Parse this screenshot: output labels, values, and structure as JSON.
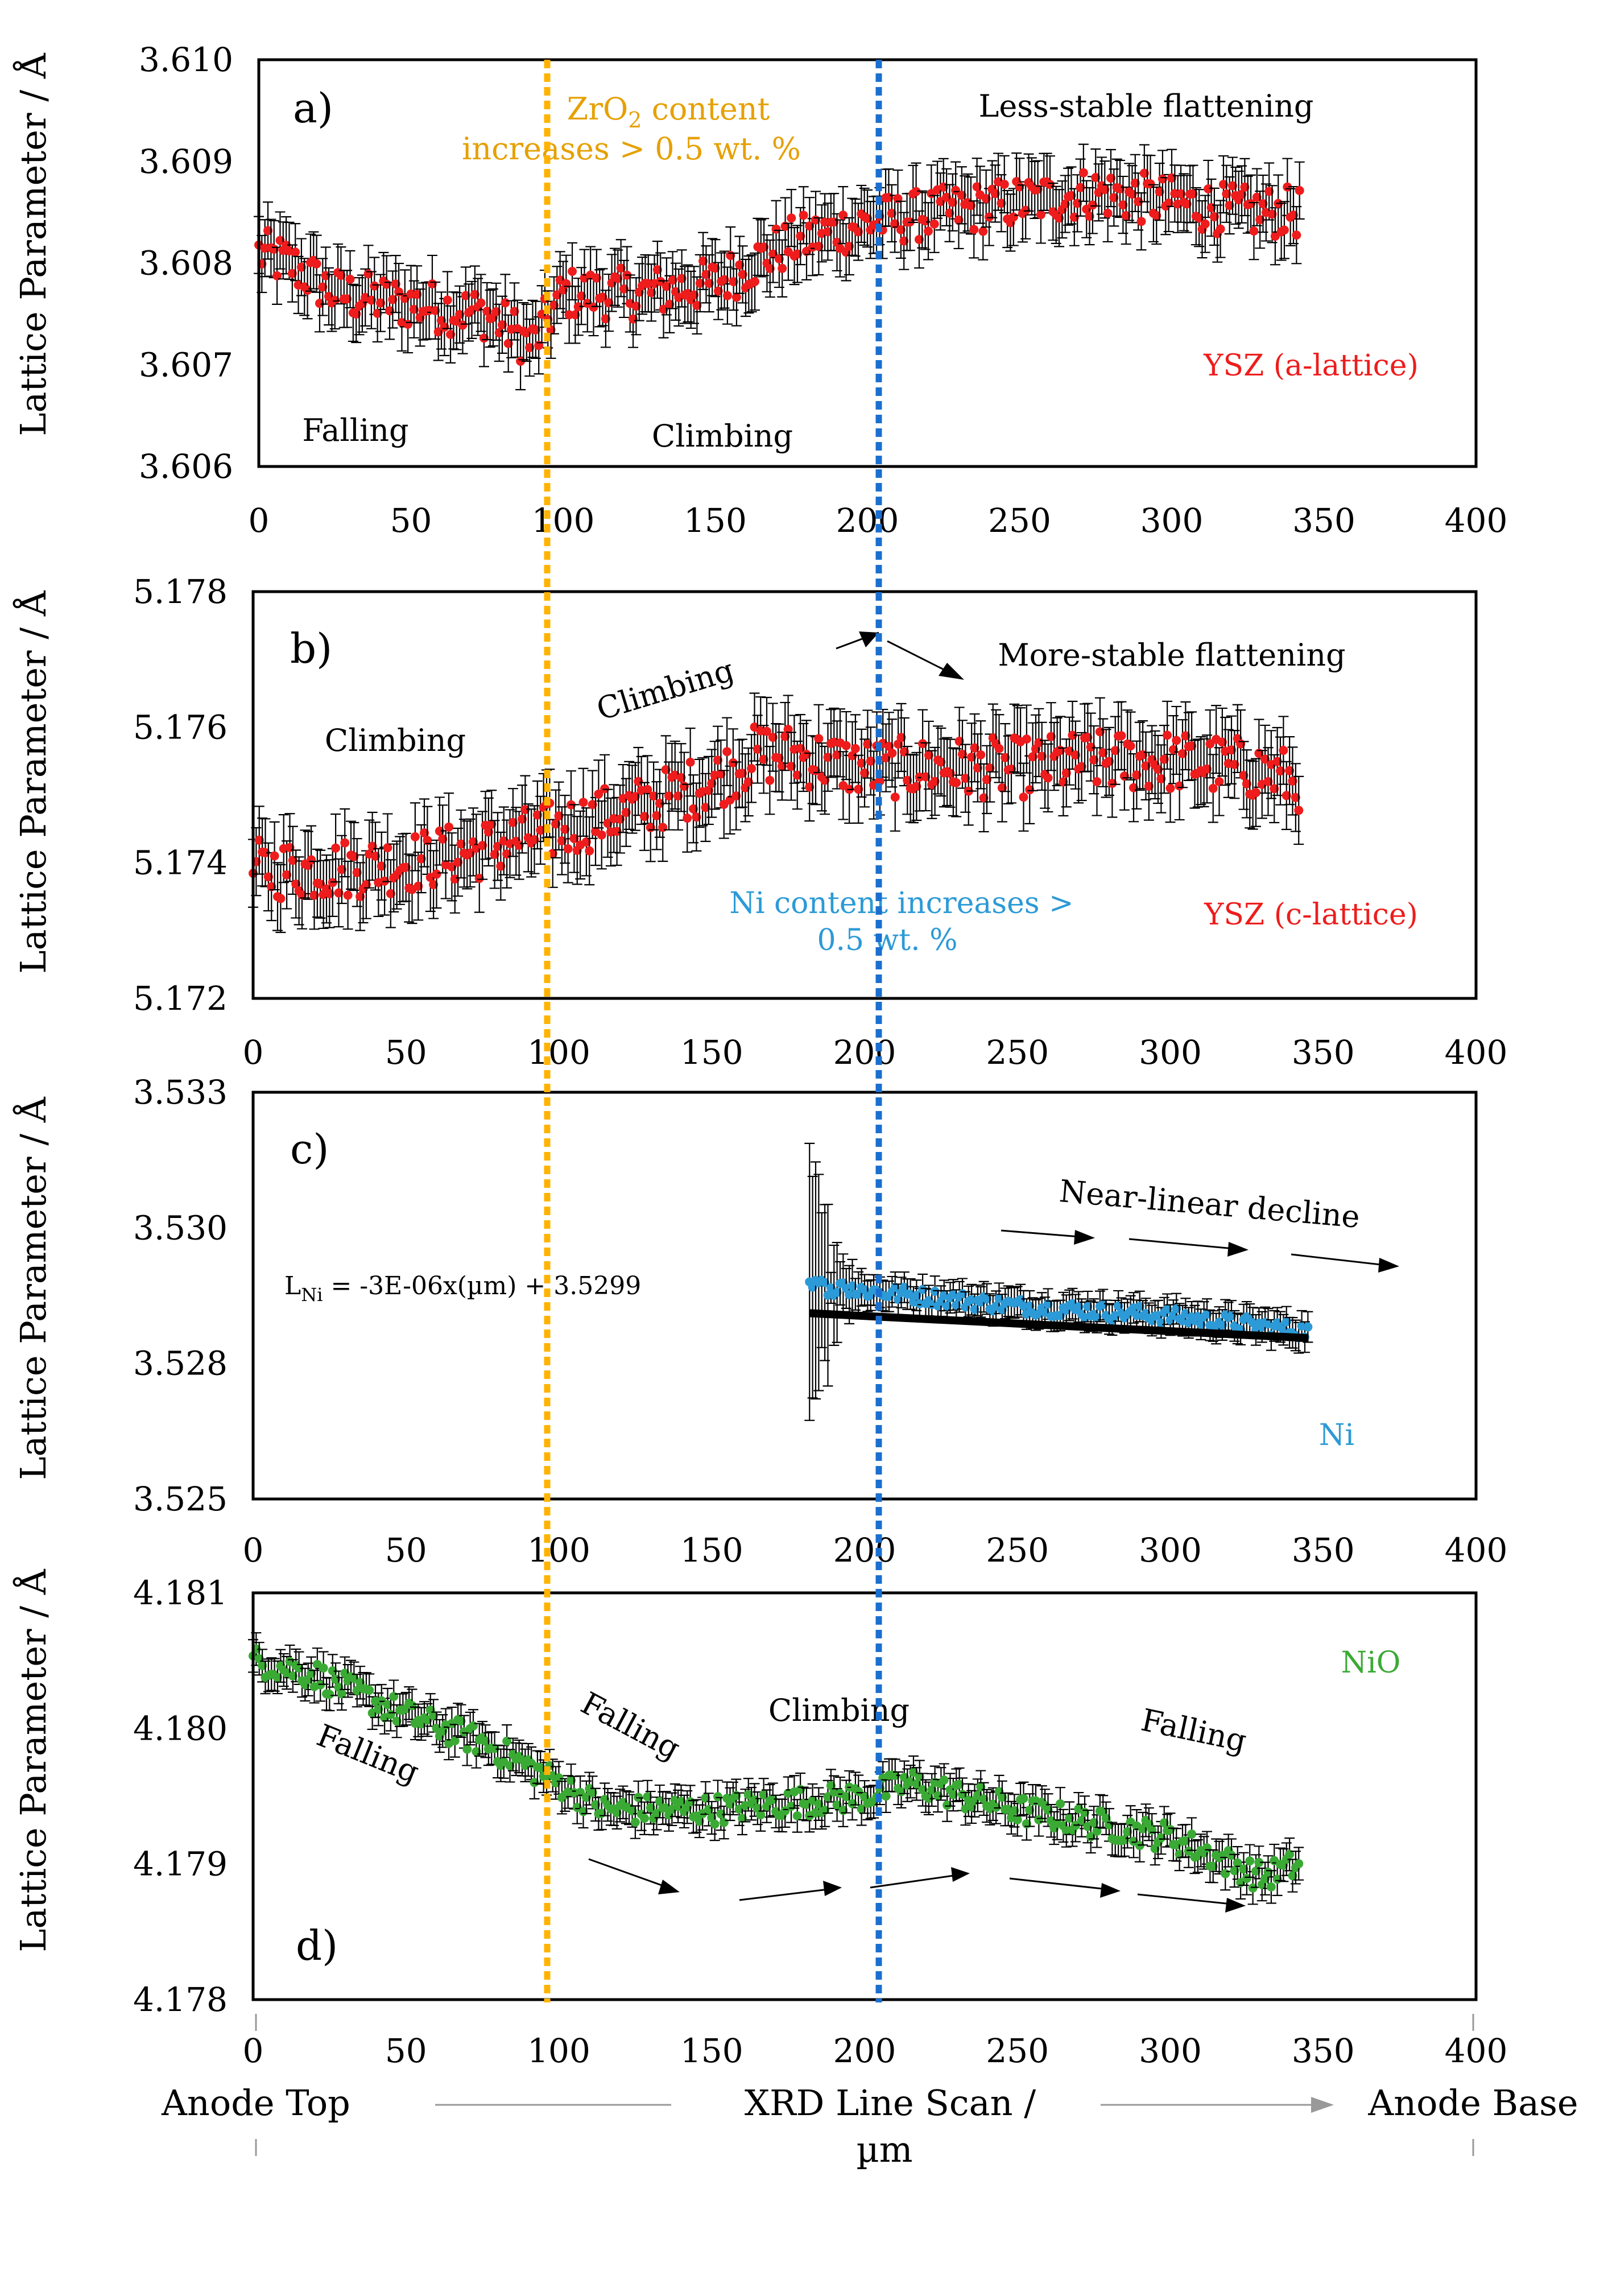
{
  "chart_data": [
    {
      "panel": "a)",
      "type": "scatter",
      "ylabel": "Lattice Parameter / Å",
      "series_label": "YSZ (a-lattice)",
      "color": "#ee1c1c",
      "ylim": [
        3.606,
        3.61
      ],
      "ytick_labels": [
        "3.606",
        "3.607",
        "3.608",
        "3.609",
        "3.610"
      ],
      "xlim": [
        0,
        400
      ],
      "xtick_labels": [
        "0",
        "50",
        "100",
        "150",
        "200",
        "250",
        "300",
        "350",
        "400"
      ],
      "x_range": [
        0,
        342
      ],
      "error": 0.00028,
      "trend_points": [
        [
          0,
          3.6081
        ],
        [
          10,
          3.608
        ],
        [
          25,
          3.6077
        ],
        [
          50,
          3.6076
        ],
        [
          75,
          3.6075
        ],
        [
          90,
          3.6072
        ],
        [
          100,
          3.6077
        ],
        [
          125,
          3.6077
        ],
        [
          150,
          3.6078
        ],
        [
          175,
          3.6082
        ],
        [
          200,
          3.6084
        ],
        [
          225,
          3.6085
        ],
        [
          250,
          3.6086
        ],
        [
          275,
          3.6087
        ],
        [
          300,
          3.6086
        ],
        [
          325,
          3.6085
        ],
        [
          342,
          3.6085
        ]
      ],
      "annotations": {
        "falling": "Falling",
        "climbing": "Climbing",
        "less_stable": "Less-stable flattening",
        "zro2_line1": "ZrO",
        "zro2_sub": "2",
        "zro2_line1_rest": " content",
        "zro2_line2": "increases > 0.5 wt. %"
      }
    },
    {
      "panel": "b)",
      "type": "scatter",
      "ylabel": "Lattice Parameter / Å",
      "series_label": "YSZ (c-lattice)",
      "color": "#ee1c1c",
      "ylim": [
        5.172,
        5.178
      ],
      "ytick_labels": [
        "5.172",
        "5.174",
        "5.176",
        "5.178"
      ],
      "xlim": [
        0,
        400
      ],
      "xtick_labels": [
        "0",
        "50",
        "100",
        "150",
        "200",
        "250",
        "300",
        "350",
        "400"
      ],
      "x_range": [
        0,
        342
      ],
      "error": 0.0005,
      "trend_points": [
        [
          0,
          5.1739
        ],
        [
          25,
          5.1739
        ],
        [
          50,
          5.174
        ],
        [
          75,
          5.1742
        ],
        [
          100,
          5.1745
        ],
        [
          125,
          5.1748
        ],
        [
          150,
          5.1752
        ],
        [
          165,
          5.1756
        ],
        [
          175,
          5.1756
        ],
        [
          200,
          5.1754
        ],
        [
          225,
          5.1754
        ],
        [
          250,
          5.1754
        ],
        [
          275,
          5.1755
        ],
        [
          300,
          5.1755
        ],
        [
          325,
          5.1754
        ],
        [
          342,
          5.1752
        ]
      ],
      "annotations": {
        "climbing1": "Climbing",
        "climbing2": "Climbing",
        "more_stable": "More-stable flattening",
        "ni_line1": "Ni content increases >",
        "ni_line2": "0.5 wt. %"
      }
    },
    {
      "panel": "c)",
      "type": "scatter",
      "ylabel": "Lattice Parameter / Å",
      "series_label": "Ni",
      "color": "#2c9ad6",
      "ylim": [
        3.525,
        3.533
      ],
      "ytick_labels": [
        "3.525",
        "3.528",
        "3.530",
        "3.533"
      ],
      "xlim": [
        0,
        400
      ],
      "xtick_labels": [
        "0",
        "50",
        "100",
        "150",
        "200",
        "250",
        "300",
        "350",
        "400"
      ],
      "x_range": [
        182,
        345
      ],
      "error": 0.0003,
      "trend_points": [
        [
          182,
          3.5292
        ],
        [
          200,
          3.5291
        ],
        [
          250,
          3.5288
        ],
        [
          300,
          3.5286
        ],
        [
          345,
          3.5283
        ]
      ],
      "fit": {
        "slope": -3e-06,
        "intercept": 3.5299
      },
      "equation_prefix": "L",
      "equation_sub": "Ni",
      "equation_rest": " = -3E-06x(µm) + 3.5299",
      "annotations": {
        "decline": "Near-linear decline"
      }
    },
    {
      "panel": "d)",
      "type": "scatter",
      "ylabel": "Lattice Parameter / Å",
      "series_label": "NiO",
      "color": "#3aaa35",
      "ylim": [
        4.178,
        4.181
      ],
      "ytick_labels": [
        "4.178",
        "4.179",
        "4.180",
        "4.181"
      ],
      "xlim": [
        0,
        400
      ],
      "xtick_labels": [
        "0",
        "50",
        "100",
        "150",
        "200",
        "250",
        "300",
        "350",
        "400"
      ],
      "x_range": [
        0,
        342
      ],
      "error": 0.00012,
      "trend_points": [
        [
          0,
          4.1805
        ],
        [
          20,
          4.1804
        ],
        [
          50,
          4.1801
        ],
        [
          75,
          4.1799
        ],
        [
          100,
          4.1796
        ],
        [
          115,
          4.1794
        ],
        [
          150,
          4.1794
        ],
        [
          200,
          4.1795
        ],
        [
          215,
          4.1796
        ],
        [
          250,
          4.1794
        ],
        [
          300,
          4.1792
        ],
        [
          330,
          4.1789
        ],
        [
          342,
          4.179
        ]
      ],
      "annotations": {
        "falling1": "Falling",
        "falling2": "Falling",
        "climbing": "Climbing",
        "falling3": "Falling"
      }
    }
  ],
  "footer": {
    "anode_top": "Anode Top",
    "line_scan": "XRD Line Scan /",
    "unit": "µm",
    "anode_base": "Anode Base"
  },
  "colors": {
    "orange_line": "#ffb300",
    "blue_line": "#1a6fd0"
  }
}
